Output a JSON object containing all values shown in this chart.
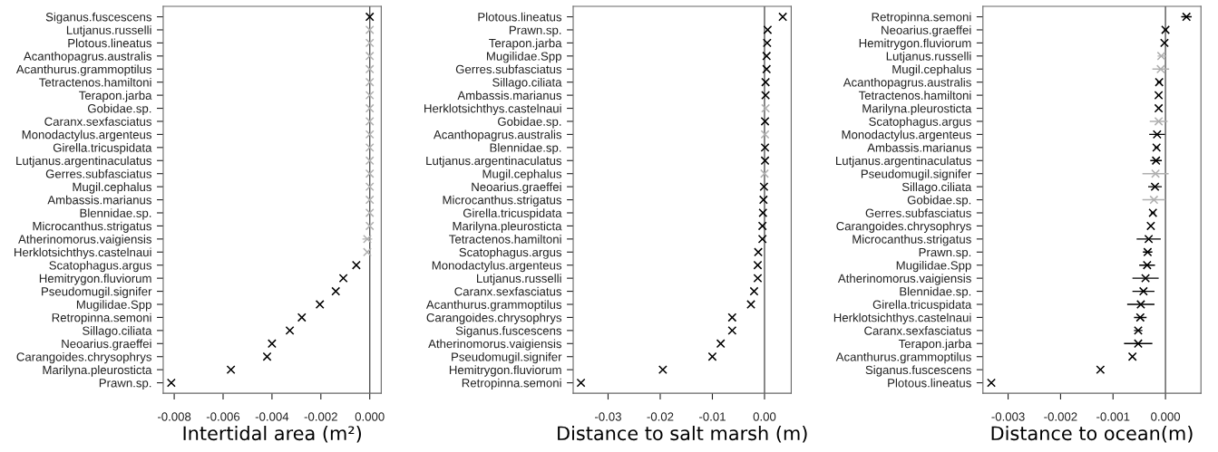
{
  "chart_data": [
    {
      "type": "scatter",
      "orientation": "horizontal",
      "marker": "cross",
      "grid": false,
      "xlabel": "Intertidal area (m²)",
      "categories": [
        "Siganus.fuscescens",
        "Lutjanus.russelli",
        "Plotous.lineatus",
        "Acanthopagrus.australis",
        "Acanthurus.grammoptilus",
        "Tetractenos.hamiltoni",
        "Terapon.jarba",
        "Gobidae.sp.",
        "Caranx.sexfasciatus",
        "Monodactylus.argenteus",
        "Girella.tricuspidata",
        "Lutjanus.argentinaculatus",
        "Gerres.subfasciatus",
        "Mugil.cephalus",
        "Ambassis.marianus",
        "Blennidae.sp.",
        "Microcanthus.strigatus",
        "Atherinomorus.vaigiensis",
        "Herklotsichthys.castelnaui",
        "Scatophagus.argus",
        "Hemitrygon.fluviorum",
        "Pseudomugil.signifer",
        "Mugilidae.Spp",
        "Retropinna.semoni",
        "Sillago.ciliata",
        "Neoarius.graeffei",
        "Carangoides.chrysophrys",
        "Marilyna.pleurosticta",
        "Prawn.sp."
      ],
      "values": [
        0.0,
        0.0,
        0.0,
        0.0,
        0.0,
        0.0,
        0.0,
        0.0,
        0.0,
        0.0,
        0.0,
        0.0,
        0.0,
        0.0,
        0.0,
        0.0,
        0.0,
        -0.0001,
        -0.0001,
        -0.00055,
        -0.00108,
        -0.00139,
        -0.00204,
        -0.00278,
        -0.00327,
        -0.004,
        -0.0042,
        -0.00568,
        -0.00812
      ],
      "errors": [
        null,
        null,
        null,
        null,
        null,
        null,
        null,
        null,
        null,
        null,
        null,
        null,
        null,
        null,
        null,
        null,
        null,
        [
          -0.0003,
          0.0001
        ],
        null,
        null,
        null,
        null,
        null,
        null,
        null,
        null,
        null,
        null,
        null
      ],
      "colors": [
        "#000000",
        "#b0b0b0",
        "#b0b0b0",
        "#b0b0b0",
        "#b0b0b0",
        "#b0b0b0",
        "#b0b0b0",
        "#b0b0b0",
        "#b0b0b0",
        "#b0b0b0",
        "#b0b0b0",
        "#b0b0b0",
        "#b0b0b0",
        "#b0b0b0",
        "#b0b0b0",
        "#b0b0b0",
        "#b0b0b0",
        "#b0b0b0",
        "#b0b0b0",
        "#000000",
        "#000000",
        "#000000",
        "#000000",
        "#000000",
        "#000000",
        "#000000",
        "#000000",
        "#000000",
        "#000000"
      ],
      "xlim": [
        -0.00845,
        0.00047
      ],
      "xticks": [
        {
          "value": -0.008,
          "label": "-0.008"
        },
        {
          "value": -0.006,
          "label": "-0.006"
        },
        {
          "value": -0.004,
          "label": "-0.004"
        },
        {
          "value": -0.002,
          "label": "-0.002"
        },
        {
          "value": 0.0,
          "label": "0.000"
        }
      ],
      "ref_lines": [
        {
          "axis": "x",
          "value": 0,
          "color": "#555555"
        }
      ]
    },
    {
      "type": "scatter",
      "orientation": "horizontal",
      "marker": "cross",
      "grid": false,
      "xlabel": "Distance to salt marsh (m)",
      "categories": [
        "Plotous.lineatus",
        "Prawn.sp.",
        "Terapon.jarba",
        "Mugilidae.Spp",
        "Gerres.subfasciatus",
        "Sillago.ciliata",
        "Ambassis.marianus",
        "Herklotsichthys.castelnaui",
        "Gobidae.sp.",
        "Acanthopagrus.australis",
        "Blennidae.sp.",
        "Lutjanus.argentinaculatus",
        "Mugil.cephalus",
        "Neoarius.graeffei",
        "Microcanthus.strigatus",
        "Girella.tricuspidata",
        "Marilyna.pleurosticta",
        "Tetractenos.hamiltoni",
        "Scatophagus.argus",
        "Monodactylus.argenteus",
        "Lutjanus.russelli",
        "Caranx.sexfasciatus",
        "Acanthurus.grammoptilus",
        "Carangoides.chrysophrys",
        "Siganus.fuscescens",
        "Atherinomorus.vaigiensis",
        "Pseudomugil.signifer",
        "Hemitrygon.fluviorum",
        "Retropinna.semoni"
      ],
      "values": [
        0.0035,
        0.0006,
        0.0005,
        0.0004,
        0.0004,
        0.0002,
        0.0002,
        0.0002,
        0.0001,
        0.0001,
        0.0001,
        0.0001,
        0.0,
        -0.0001,
        -0.0002,
        -0.0003,
        -0.0004,
        -0.0004,
        -0.0012,
        -0.0013,
        -0.0013,
        -0.002,
        -0.0026,
        -0.0062,
        -0.0062,
        -0.0084,
        -0.01,
        -0.0195,
        -0.0352
      ],
      "colors": [
        "#000000",
        "#000000",
        "#000000",
        "#000000",
        "#000000",
        "#000000",
        "#000000",
        "#b0b0b0",
        "#000000",
        "#b0b0b0",
        "#000000",
        "#000000",
        "#b0b0b0",
        "#000000",
        "#000000",
        "#000000",
        "#000000",
        "#000000",
        "#000000",
        "#000000",
        "#000000",
        "#000000",
        "#000000",
        "#000000",
        "#000000",
        "#000000",
        "#000000",
        "#000000",
        "#000000"
      ],
      "xlim": [
        -0.03669,
        0.00512
      ],
      "xticks": [
        {
          "value": -0.03,
          "label": "-0.03"
        },
        {
          "value": -0.02,
          "label": "-0.02"
        },
        {
          "value": -0.01,
          "label": "-0.01"
        },
        {
          "value": 0.0,
          "label": "0.00"
        }
      ],
      "ref_lines": [
        {
          "axis": "x",
          "value": 0,
          "color": "#555555"
        }
      ]
    },
    {
      "type": "scatter",
      "orientation": "horizontal",
      "marker": "cross",
      "grid": false,
      "xlabel": "Distance to ocean(m)",
      "categories": [
        "Retropinna.semoni",
        "Neoarius.graeffei",
        "Hemitrygon.fluviorum",
        "Lutjanus.russelli",
        "Mugil.cephalus",
        "Acanthopagrus.australis",
        "Tetractenos.hamiltoni",
        "Marilyna.pleurosticta",
        "Scatophagus.argus",
        "Monodactylus.argenteus",
        "Ambassis.marianus",
        "Lutjanus.argentinaculatus",
        "Pseudomugil.signifer",
        "Sillago.ciliata",
        "Gobidae.sp.",
        "Gerres.subfasciatus",
        "Carangoides.chrysophrys",
        "Microcanthus.strigatus",
        "Prawn.sp.",
        "Mugilidae.Spp",
        "Atherinomorus.vaigiensis",
        "Blennidae.sp.",
        "Girella.tricuspidata",
        "Herklotsichthys.castelnaui",
        "Caranx.sexfasciatus",
        "Terapon.jarba",
        "Acanthurus.grammoptilus",
        "Siganus.fuscescens",
        "Plotous.lineatus"
      ],
      "values": [
        0.0004,
        0.0,
        -2e-05,
        -8e-05,
        -9e-05,
        -0.00012,
        -0.00013,
        -0.00013,
        -0.00013,
        -0.00016,
        -0.00017,
        -0.00018,
        -0.00019,
        -0.0002,
        -0.00022,
        -0.00024,
        -0.00028,
        -0.00032,
        -0.00034,
        -0.00035,
        -0.00038,
        -0.00042,
        -0.00047,
        -0.00048,
        -0.00052,
        -0.00052,
        -0.00063,
        -0.00124,
        -0.00332
      ],
      "errors": [
        [
          0.0003,
          0.0005
        ],
        [
          -3e-05,
          3e-05
        ],
        null,
        [
          -0.00015,
          2e-05
        ],
        [
          -0.00025,
          7e-05
        ],
        [
          -0.00016,
          -8e-05
        ],
        [
          -0.00016,
          -0.0001
        ],
        null,
        [
          -0.0003,
          4e-05
        ],
        [
          -0.00031,
          -1e-05
        ],
        [
          -0.00021,
          -0.00013
        ],
        [
          -0.00029,
          -7e-05
        ],
        [
          -0.00044,
          6e-05
        ],
        [
          -0.00033,
          -7e-05
        ],
        [
          -0.00044,
          0.0
        ],
        [
          -0.00028,
          -0.0002
        ],
        null,
        [
          -0.00055,
          -9e-05
        ],
        [
          -0.00043,
          -0.00025
        ],
        [
          -0.0005,
          -0.0002
        ],
        [
          -0.00063,
          -0.00013
        ],
        [
          -0.00063,
          -0.00021
        ],
        [
          -0.00073,
          -0.00021
        ],
        [
          -0.0006,
          -0.00036
        ],
        [
          -0.0006,
          -0.00044
        ],
        [
          -0.00079,
          -0.00025
        ],
        null,
        null,
        null
      ],
      "colors": [
        "#000000",
        "#000000",
        "#000000",
        "#b0b0b0",
        "#b0b0b0",
        "#000000",
        "#000000",
        "#000000",
        "#b0b0b0",
        "#000000",
        "#000000",
        "#000000",
        "#b0b0b0",
        "#000000",
        "#b0b0b0",
        "#000000",
        "#000000",
        "#000000",
        "#000000",
        "#000000",
        "#000000",
        "#000000",
        "#000000",
        "#000000",
        "#000000",
        "#000000",
        "#000000",
        "#000000",
        "#000000"
      ],
      "xlim": [
        -0.00348,
        0.000676
      ],
      "xticks": [
        {
          "value": -0.003,
          "label": "-0.003"
        },
        {
          "value": -0.002,
          "label": "-0.002"
        },
        {
          "value": -0.001,
          "label": "-0.001"
        },
        {
          "value": 0.0,
          "label": "0.000"
        }
      ],
      "ref_lines": [
        {
          "axis": "x",
          "value": 0,
          "color": "#555555"
        }
      ]
    }
  ]
}
